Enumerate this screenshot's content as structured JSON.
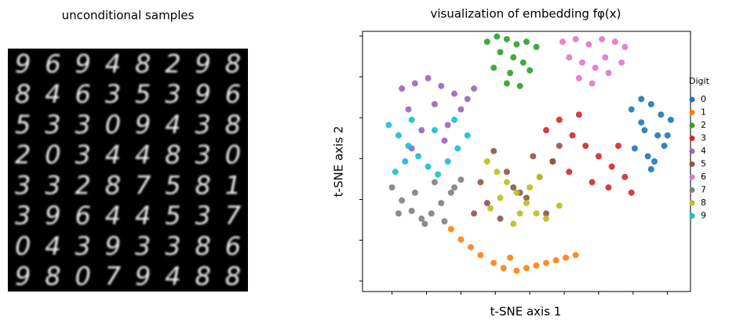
{
  "samples": {
    "title": "unconditional samples",
    "digits": [
      [
        "9",
        "6",
        "9",
        "4",
        "8",
        "2",
        "9",
        "8"
      ],
      [
        "8",
        "4",
        "6",
        "3",
        "5",
        "3",
        "9",
        "6"
      ],
      [
        "5",
        "3",
        "3",
        "0",
        "9",
        "4",
        "3",
        "8"
      ],
      [
        "2",
        "0",
        "3",
        "4",
        "4",
        "8",
        "3",
        "0"
      ],
      [
        "3",
        "3",
        "2",
        "8",
        "7",
        "5",
        "8",
        "1"
      ],
      [
        "3",
        "9",
        "6",
        "4",
        "4",
        "5",
        "3",
        "7"
      ],
      [
        "0",
        "4",
        "3",
        "9",
        "3",
        "3",
        "8",
        "6"
      ],
      [
        "9",
        "8",
        "0",
        "7",
        "9",
        "4",
        "8",
        "8"
      ]
    ]
  },
  "chart_data": {
    "type": "scatter",
    "title": "visualization of embedding fφ(x)",
    "x_label": "t-SNE axis 1",
    "y_label": "t-SNE axis 2",
    "xlim": [
      0,
      100
    ],
    "ylim": [
      0,
      100
    ],
    "xticks": [
      9,
      19.5,
      30,
      40.5,
      51,
      61.5,
      72,
      82.5,
      93
    ],
    "yticks": [
      4,
      19.7,
      35.4,
      51.1,
      66.8,
      82.5,
      98.2
    ],
    "legend_title": "Digit",
    "legend": "right",
    "series": [
      {
        "name": "0",
        "color": "#1f77b4",
        "x": [
          82,
          85,
          88,
          91,
          94,
          86,
          90,
          83,
          87,
          92,
          89,
          85,
          93,
          88
        ],
        "values": [
          70,
          74,
          72,
          68,
          66,
          62,
          60,
          55,
          52,
          56,
          50,
          65,
          60,
          47
        ]
      },
      {
        "name": "1",
        "color": "#ff7f0e",
        "x": [
          27,
          30,
          33,
          36,
          40,
          43,
          47,
          50,
          53,
          56,
          59,
          62,
          65,
          45
        ],
        "values": [
          24,
          20,
          17,
          14,
          11,
          9,
          8,
          9,
          10,
          11,
          12,
          13,
          14,
          13
        ]
      },
      {
        "name": "2",
        "color": "#2ca02c",
        "x": [
          38,
          41,
          44,
          47,
          50,
          53,
          42,
          46,
          49,
          40,
          45,
          51,
          44,
          48
        ],
        "values": [
          96,
          98,
          97,
          95,
          96,
          94,
          92,
          90,
          88,
          86,
          84,
          85,
          80,
          79
        ]
      },
      {
        "name": "3",
        "color": "#d62728",
        "x": [
          56,
          60,
          64,
          68,
          72,
          76,
          80,
          82,
          58,
          63,
          70,
          75,
          78,
          66
        ],
        "values": [
          62,
          66,
          60,
          56,
          52,
          48,
          44,
          38,
          50,
          46,
          42,
          40,
          56,
          68
        ]
      },
      {
        "name": "4",
        "color": "#9467bd",
        "x": [
          12,
          16,
          20,
          24,
          28,
          32,
          14,
          22,
          30,
          34,
          18,
          26,
          15,
          25
        ],
        "values": [
          78,
          80,
          82,
          79,
          76,
          74,
          70,
          72,
          70,
          78,
          62,
          64,
          55,
          58
        ]
      },
      {
        "name": "5",
        "color": "#8c564b",
        "x": [
          34,
          38,
          42,
          46,
          50,
          54,
          58,
          60,
          36,
          44,
          52,
          56,
          40,
          48
        ],
        "values": [
          30,
          34,
          28,
          40,
          36,
          44,
          50,
          56,
          42,
          46,
          52,
          30,
          54,
          38
        ]
      },
      {
        "name": "6",
        "color": "#e377c2",
        "x": [
          61,
          65,
          69,
          73,
          77,
          80,
          63,
          67,
          71,
          75,
          79,
          70,
          66,
          74
        ],
        "values": [
          96,
          97,
          95,
          97,
          96,
          94,
          90,
          88,
          86,
          84,
          88,
          80,
          82,
          90
        ]
      },
      {
        "name": "7",
        "color": "#7f7f7f",
        "x": [
          9,
          12,
          15,
          18,
          21,
          24,
          27,
          30,
          11,
          16,
          22,
          28,
          19,
          25
        ],
        "values": [
          40,
          35,
          31,
          28,
          30,
          34,
          38,
          43,
          30,
          38,
          42,
          40,
          26,
          27
        ]
      },
      {
        "name": "8",
        "color": "#bcbd22",
        "x": [
          38,
          41,
          44,
          47,
          50,
          53,
          56,
          60,
          42,
          48,
          54,
          46,
          51,
          39
        ],
        "values": [
          50,
          46,
          42,
          38,
          34,
          30,
          28,
          33,
          36,
          30,
          44,
          26,
          40,
          32
        ]
      },
      {
        "name": "9",
        "color": "#17becf",
        "x": [
          8,
          11,
          14,
          17,
          20,
          23,
          26,
          29,
          32,
          10,
          15,
          22,
          28,
          13
        ],
        "values": [
          64,
          60,
          56,
          52,
          48,
          45,
          50,
          55,
          60,
          46,
          66,
          62,
          66,
          50
        ]
      }
    ]
  }
}
